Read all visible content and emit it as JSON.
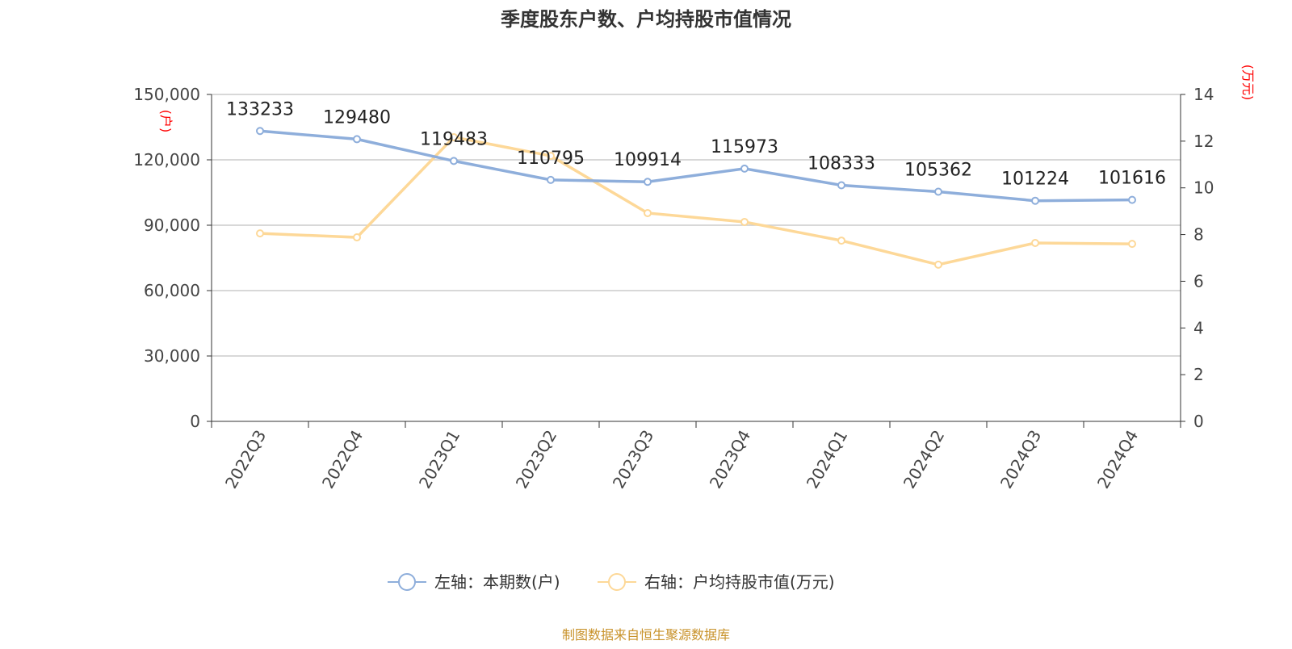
{
  "chart_data": {
    "type": "line",
    "title": "季度股东户数、户均持股市值情况",
    "categories": [
      "2022Q3",
      "2022Q4",
      "2023Q1",
      "2023Q2",
      "2023Q3",
      "2023Q4",
      "2024Q1",
      "2024Q2",
      "2024Q3",
      "2024Q4"
    ],
    "left_axis": {
      "label": "(户)",
      "range": [
        0,
        150000
      ],
      "ticks": [
        "0",
        "30,000",
        "60,000",
        "90,000",
        "120,000",
        "150,000"
      ],
      "tick_values": [
        0,
        30000,
        60000,
        90000,
        120000,
        150000
      ]
    },
    "right_axis": {
      "label": "(万元)",
      "range": [
        0,
        14
      ],
      "ticks": [
        "0",
        "2",
        "4",
        "6",
        "8",
        "10",
        "12",
        "14"
      ],
      "tick_values": [
        0,
        2,
        4,
        6,
        8,
        10,
        12,
        14
      ]
    },
    "series": [
      {
        "name": "左轴：本期数(户)",
        "axis": "left",
        "color": "#8eaedb",
        "values": [
          133233,
          129480,
          119483,
          110795,
          109914,
          115973,
          108333,
          105362,
          101224,
          101616
        ],
        "labels": [
          "133233",
          "129480",
          "119483",
          "110795",
          "109914",
          "115973",
          "108333",
          "105362",
          "101224",
          "101616"
        ]
      },
      {
        "name": "右轴：户均持股市值(万元)",
        "axis": "right",
        "color": "#fdd898",
        "values": [
          8.05,
          7.88,
          12.17,
          11.37,
          8.92,
          8.54,
          7.74,
          6.71,
          7.64,
          7.6
        ]
      }
    ],
    "grid": true,
    "legend": "bottom",
    "source": "制图数据来自恒生聚源数据库"
  }
}
